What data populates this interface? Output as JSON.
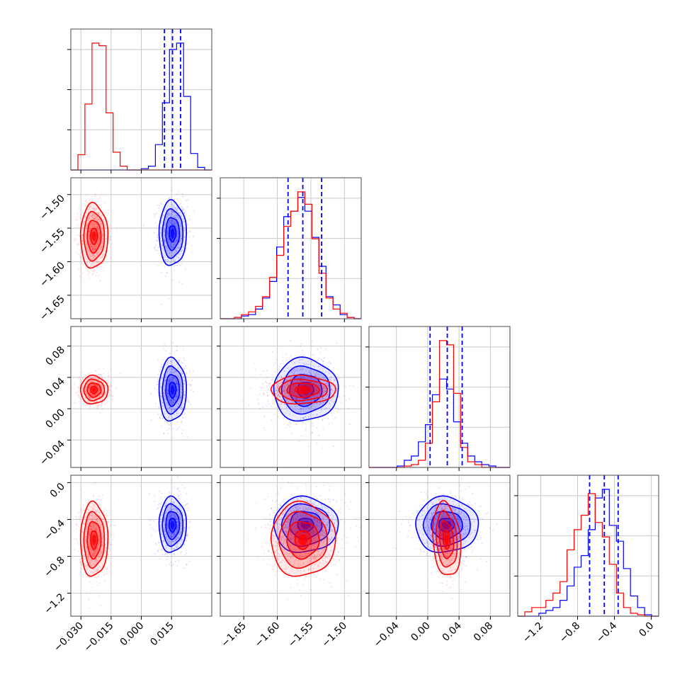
{
  "chart_data": {
    "type": "corner",
    "parameters": 4,
    "series": [
      {
        "name": "",
        "color": "#ff0000"
      },
      {
        "name": "",
        "color": "#0000ff"
      }
    ],
    "params": [
      {
        "range": [
          -0.035,
          0.035
        ],
        "ticks": [
          -0.03,
          -0.015,
          0.0,
          0.015
        ],
        "tick_labels": [
          "−0.030",
          "−0.015",
          "0.000",
          "0.015"
        ]
      },
      {
        "range": [
          -1.685,
          -1.475
        ],
        "ticks": [
          -1.65,
          -1.6,
          -1.55,
          -1.5
        ],
        "tick_labels": [
          "−1.65",
          "−1.60",
          "−1.55",
          "−1.50"
        ]
      },
      {
        "range": [
          -0.075,
          0.105
        ],
        "ticks": [
          -0.04,
          0.0,
          0.04,
          0.08
        ],
        "tick_labels": [
          "−0.04",
          "0.00",
          "0.04",
          "0.08"
        ]
      },
      {
        "range": [
          -1.45,
          0.08
        ],
        "ticks": [
          -1.2,
          -0.8,
          -0.4,
          0.0
        ],
        "tick_labels": [
          "−1.2",
          "−0.8",
          "−0.4",
          "0.0"
        ]
      }
    ],
    "marginals": [
      {
        "bin_edges": [
          -0.035,
          -0.0315,
          -0.028,
          -0.0245,
          -0.021,
          -0.0175,
          -0.014,
          -0.0105,
          -0.007,
          -0.0035,
          0.0,
          0.0035,
          0.007,
          0.0105,
          0.014,
          0.0175,
          0.021,
          0.0245,
          0.028,
          0.0315,
          0.035
        ],
        "red": [
          0,
          0.12,
          0.52,
          1.0,
          0.98,
          0.45,
          0.14,
          0.03,
          0,
          0,
          0,
          0,
          0,
          0,
          0,
          0,
          0,
          0,
          0,
          0
        ],
        "blue": [
          0,
          0,
          0,
          0,
          0,
          0,
          0,
          0,
          0,
          0,
          0.01,
          0.03,
          0.2,
          0.53,
          0.95,
          1.0,
          0.58,
          0.13,
          0.02,
          0
        ],
        "quantiles": [
          0.0115,
          0.0155,
          0.0195
        ]
      },
      {
        "bin_edges": [
          -1.685,
          -1.6745,
          -1.664,
          -1.6535,
          -1.643,
          -1.6325,
          -1.622,
          -1.6115,
          -1.601,
          -1.5905,
          -1.58,
          -1.5695,
          -1.559,
          -1.5485,
          -1.538,
          -1.5275,
          -1.517,
          -1.5065,
          -1.496,
          -1.4855,
          -1.475
        ],
        "red": [
          0,
          0,
          0.01,
          0.03,
          0.05,
          0.09,
          0.16,
          0.3,
          0.46,
          0.67,
          0.78,
          0.92,
          0.83,
          0.58,
          0.33,
          0.15,
          0.07,
          0.04,
          0.01,
          0
        ],
        "blue": [
          0,
          0,
          0,
          0.02,
          0.03,
          0.07,
          0.15,
          0.27,
          0.52,
          0.74,
          0.78,
          0.88,
          0.78,
          0.59,
          0.38,
          0.16,
          0.1,
          0.03,
          0.01,
          0
        ],
        "quantiles": [
          -1.584,
          -1.562,
          -1.534
        ]
      },
      {
        "bin_edges": [
          -0.075,
          -0.066,
          -0.057,
          -0.048,
          -0.039,
          -0.03,
          -0.021,
          -0.012,
          -0.003,
          0.006,
          0.015,
          0.024,
          0.033,
          0.042,
          0.051,
          0.06,
          0.069,
          0.078,
          0.087,
          0.096,
          0.105
        ],
        "red": [
          0,
          0,
          0,
          0,
          0,
          0.01,
          0.02,
          0.05,
          0.17,
          0.46,
          0.89,
          0.86,
          0.52,
          0.14,
          0.04,
          0.02,
          0,
          0,
          0,
          0
        ],
        "blue": [
          0,
          0,
          0,
          0,
          0.01,
          0.05,
          0.08,
          0.18,
          0.3,
          0.51,
          0.62,
          0.55,
          0.32,
          0.17,
          0.08,
          0.04,
          0.02,
          0.01,
          0,
          0
        ],
        "quantiles": [
          0.003,
          0.025,
          0.044
        ]
      },
      {
        "bin_edges": [
          -1.45,
          -1.3735,
          -1.297,
          -1.2205,
          -1.144,
          -1.0675,
          -0.991,
          -0.9145,
          -0.838,
          -0.7615,
          -0.685,
          -0.6085,
          -0.532,
          -0.4555,
          -0.379,
          -0.3025,
          -0.226,
          -0.1495,
          -0.073,
          0.0035,
          0.08
        ],
        "red": [
          0,
          0.03,
          0.06,
          0.06,
          0.11,
          0.16,
          0.24,
          0.46,
          0.6,
          0.7,
          0.85,
          0.65,
          0.55,
          0.36,
          0.16,
          0.06,
          0.02,
          0.01,
          0,
          0
        ],
        "blue": [
          0,
          0,
          0,
          0.02,
          0.04,
          0.06,
          0.11,
          0.21,
          0.34,
          0.42,
          0.6,
          0.82,
          0.88,
          0.63,
          0.52,
          0.33,
          0.14,
          0.06,
          0.01,
          0
        ],
        "quantiles": [
          -0.67,
          -0.51,
          -0.36
        ]
      }
    ],
    "pairs": [
      {
        "row": 1,
        "col": 0,
        "red": {
          "mx": -0.0235,
          "my": -1.562,
          "sx": 0.0034,
          "sy": 0.024,
          "rho": 0.0
        },
        "blue": {
          "mx": 0.0155,
          "my": -1.558,
          "sx": 0.0034,
          "sy": 0.024,
          "rho": 0.0
        }
      },
      {
        "row": 2,
        "col": 0,
        "red": {
          "mx": -0.0235,
          "my": 0.024,
          "sx": 0.0034,
          "sy": 0.009,
          "rho": 0.0
        },
        "blue": {
          "mx": 0.0155,
          "my": 0.024,
          "sx": 0.0034,
          "sy": 0.02,
          "rho": 0.0
        }
      },
      {
        "row": 2,
        "col": 1,
        "red": {
          "mx": -1.562,
          "my": 0.024,
          "sx": 0.024,
          "sy": 0.009,
          "rho": 0.0
        },
        "blue": {
          "mx": -1.558,
          "my": 0.024,
          "sx": 0.024,
          "sy": 0.02,
          "rho": 0.0
        }
      },
      {
        "row": 3,
        "col": 0,
        "red": {
          "mx": -0.0235,
          "my": -0.62,
          "sx": 0.0034,
          "sy": 0.2,
          "rho": 0.0
        },
        "blue": {
          "mx": 0.0155,
          "my": -0.46,
          "sx": 0.0034,
          "sy": 0.15,
          "rho": 0.0
        }
      },
      {
        "row": 3,
        "col": 1,
        "red": {
          "mx": -1.562,
          "my": -0.62,
          "sx": 0.024,
          "sy": 0.2,
          "rho": 0.0
        },
        "blue": {
          "mx": -1.558,
          "my": -0.46,
          "sx": 0.024,
          "sy": 0.15,
          "rho": 0.0
        }
      },
      {
        "row": 3,
        "col": 2,
        "red": {
          "mx": 0.024,
          "my": -0.62,
          "sx": 0.009,
          "sy": 0.2,
          "rho": -0.2
        },
        "blue": {
          "mx": 0.024,
          "my": -0.46,
          "sx": 0.02,
          "sy": 0.15,
          "rho": 0.0
        }
      }
    ],
    "contour_levels_sigma": [
      0.5,
      1.0,
      1.5,
      2.0
    ],
    "grid": true,
    "title": "",
    "xlabel": "",
    "ylabel": ""
  }
}
